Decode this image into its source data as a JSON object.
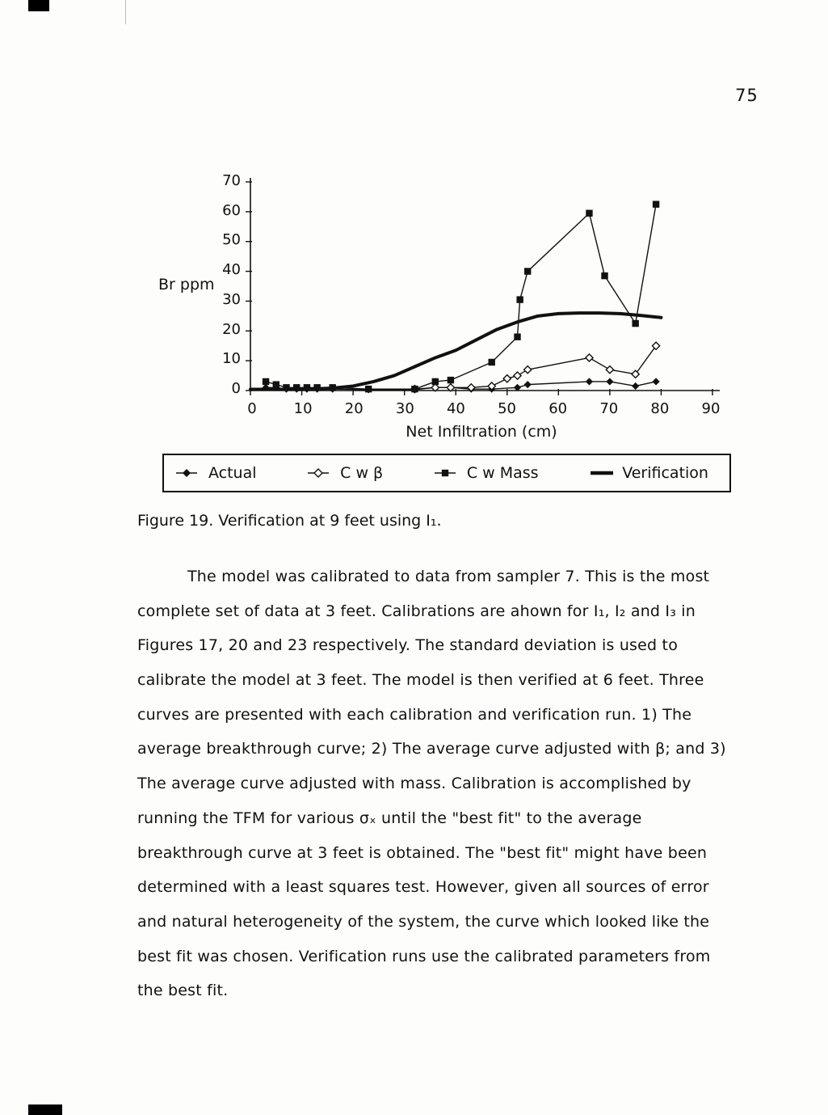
{
  "page": {
    "number": "75"
  },
  "colors": {
    "ink": "#111111",
    "paper": "#fdfdfc"
  },
  "chart_data": {
    "type": "line",
    "title": "",
    "xlabel": "Net Infiltration (cm)",
    "ylabel": "Br ppm",
    "xlim": [
      0,
      90
    ],
    "ylim": [
      0,
      70
    ],
    "xticks": [
      0,
      10,
      20,
      30,
      40,
      50,
      60,
      70,
      80,
      90
    ],
    "yticks": [
      70,
      60,
      50,
      40,
      30,
      20,
      10,
      0
    ],
    "grid": false,
    "legend_position": "bottom-box",
    "series": [
      {
        "name": "Actual",
        "marker": "filled-diamond",
        "line_width": 1.4,
        "points": [
          [
            3,
            1
          ],
          [
            5,
            1
          ],
          [
            7,
            0.5
          ],
          [
            9,
            0.5
          ],
          [
            11,
            0.5
          ],
          [
            13,
            0.5
          ],
          [
            16,
            0.5
          ],
          [
            23,
            0.3
          ],
          [
            32,
            0.3
          ],
          [
            36,
            1
          ],
          [
            39,
            1
          ],
          [
            43,
            0.5
          ],
          [
            47,
            0.5
          ],
          [
            52,
            1
          ],
          [
            54,
            2
          ],
          [
            66,
            3
          ],
          [
            70,
            3
          ],
          [
            75,
            1.5
          ],
          [
            79,
            3
          ]
        ]
      },
      {
        "name": "C w β",
        "marker": "open-diamond",
        "line_width": 1.4,
        "points": [
          [
            32,
            0.5
          ],
          [
            36,
            1
          ],
          [
            39,
            1
          ],
          [
            43,
            1
          ],
          [
            47,
            1.5
          ],
          [
            50,
            4
          ],
          [
            52,
            5
          ],
          [
            54,
            7
          ],
          [
            66,
            11
          ],
          [
            70,
            7
          ],
          [
            75,
            5.5
          ],
          [
            79,
            15
          ]
        ]
      },
      {
        "name": "C w Mass",
        "marker": "filled-square",
        "line_width": 1.4,
        "points": [
          [
            3,
            3
          ],
          [
            5,
            2
          ],
          [
            7,
            1
          ],
          [
            9,
            1
          ],
          [
            11,
            1
          ],
          [
            13,
            1
          ],
          [
            16,
            1
          ],
          [
            23,
            0.5
          ],
          [
            32,
            0.5
          ],
          [
            36,
            3
          ],
          [
            39,
            3.5
          ],
          [
            47,
            9.5
          ],
          [
            52,
            18
          ],
          [
            52.5,
            30.5
          ],
          [
            54,
            40
          ],
          [
            66,
            59.5
          ],
          [
            69,
            38.5
          ],
          [
            75,
            22.5
          ],
          [
            79,
            62.5
          ]
        ]
      },
      {
        "name": "Verification",
        "marker": "none",
        "line_width": 4,
        "points": [
          [
            0,
            0.4
          ],
          [
            6,
            0.4
          ],
          [
            12,
            0.5
          ],
          [
            16,
            0.8
          ],
          [
            20,
            1.5
          ],
          [
            24,
            3
          ],
          [
            28,
            5
          ],
          [
            32,
            8
          ],
          [
            36,
            11
          ],
          [
            40,
            13.5
          ],
          [
            44,
            17
          ],
          [
            48,
            20.5
          ],
          [
            52,
            23
          ],
          [
            56,
            25
          ],
          [
            60,
            25.8
          ],
          [
            64,
            26
          ],
          [
            68,
            26
          ],
          [
            72,
            25.8
          ],
          [
            76,
            25.2
          ],
          [
            80,
            24.5
          ]
        ]
      }
    ],
    "legend": [
      {
        "label": "Actual",
        "marker": "filled-diamond"
      },
      {
        "label": "C w β",
        "marker": "open-diamond"
      },
      {
        "label": "C w Mass",
        "marker": "filled-square"
      },
      {
        "label": "Verification",
        "marker": "thick-line"
      }
    ]
  },
  "figure": {
    "caption": "Figure 19. Verification at 9 feet using I₁."
  },
  "body": {
    "lines": [
      "The model was calibrated to data from sampler 7.  This is the most",
      "complete set of data at 3 feet.  Calibrations are ahown for I₁, I₂ and I₃ in",
      "Figures 17, 20 and 23 respectively. The standard deviation is used to",
      "calibrate the model at 3 feet.  The model is then verified at 6 feet.  Three",
      "curves are presented with each calibration and verification run.  1) The",
      "average breakthrough curve; 2) The average curve adjusted with β; and 3)",
      "The average curve adjusted with mass.  Calibration is accomplished by",
      "running the TFM for various σₓ until the \"best fit\" to the average",
      "breakthrough curve at 3 feet is obtained.  The \"best fit\" might have been",
      "determined with a least squares test.  However, given all sources of error",
      "and natural heterogeneity of the system, the curve which looked like the",
      "best fit was chosen.  Verification runs use the calibrated parameters from",
      "the best fit."
    ]
  }
}
